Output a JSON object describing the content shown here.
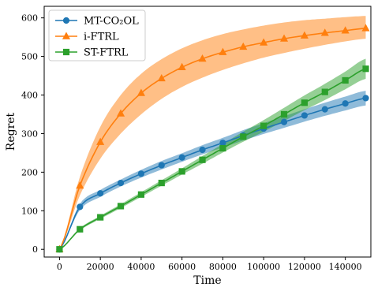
{
  "chart_data": {
    "type": "line",
    "title": "",
    "xlabel": "Time",
    "ylabel": "Regret",
    "xlim": [
      -7500,
      152500
    ],
    "ylim": [
      -20,
      630
    ],
    "xticks": [
      0,
      20000,
      40000,
      60000,
      80000,
      100000,
      120000,
      140000
    ],
    "yticks": [
      0,
      100,
      200,
      300,
      400,
      500,
      600
    ],
    "grid": false,
    "legend_position": "top-left",
    "series": [
      {
        "name": "MT-CO₂OL",
        "color": "#1f77b4",
        "marker": "circle",
        "x": [
          0,
          10000,
          20000,
          30000,
          40000,
          50000,
          60000,
          70000,
          80000,
          90000,
          100000,
          110000,
          120000,
          130000,
          140000,
          150000
        ],
        "y": [
          0,
          110,
          145,
          172,
          196,
          218,
          238,
          258,
          276,
          295,
          313,
          330,
          347,
          363,
          378,
          392
        ],
        "band_low": [
          0,
          102,
          136,
          163,
          186,
          207,
          227,
          246,
          264,
          282,
          299,
          315,
          331,
          346,
          360,
          373
        ],
        "band_high": [
          0,
          118,
          154,
          181,
          206,
          229,
          249,
          270,
          289,
          309,
          327,
          345,
          363,
          380,
          396,
          411
        ]
      },
      {
        "name": "i-FTRL",
        "color": "#ff7f0e",
        "marker": "triangle",
        "x": [
          0,
          10000,
          20000,
          30000,
          40000,
          50000,
          60000,
          70000,
          80000,
          90000,
          100000,
          110000,
          120000,
          130000,
          140000,
          150000
        ],
        "y": [
          0,
          165,
          278,
          352,
          405,
          443,
          472,
          494,
          511,
          525,
          536,
          546,
          554,
          561,
          567,
          573
        ],
        "band_low": [
          0,
          140,
          235,
          300,
          350,
          390,
          421,
          445,
          465,
          482,
          497,
          509,
          520,
          530,
          539,
          546
        ],
        "band_high": [
          0,
          188,
          318,
          400,
          455,
          493,
          521,
          542,
          558,
          570,
          580,
          588,
          594,
          598,
          602,
          605
        ]
      },
      {
        "name": "ST-FTRL",
        "color": "#2ca02c",
        "marker": "square",
        "x": [
          0,
          10000,
          20000,
          30000,
          40000,
          50000,
          60000,
          70000,
          80000,
          90000,
          100000,
          110000,
          120000,
          130000,
          140000,
          150000
        ],
        "y": [
          0,
          52,
          83,
          112,
          142,
          172,
          202,
          232,
          262,
          292,
          320,
          350,
          380,
          408,
          438,
          468
        ],
        "band_low": [
          0,
          49,
          79,
          107,
          136,
          165,
          194,
          222,
          251,
          279,
          305,
          333,
          361,
          387,
          415,
          442
        ],
        "band_high": [
          0,
          55,
          87,
          117,
          148,
          179,
          210,
          242,
          273,
          305,
          335,
          367,
          399,
          429,
          461,
          494
        ]
      }
    ]
  }
}
